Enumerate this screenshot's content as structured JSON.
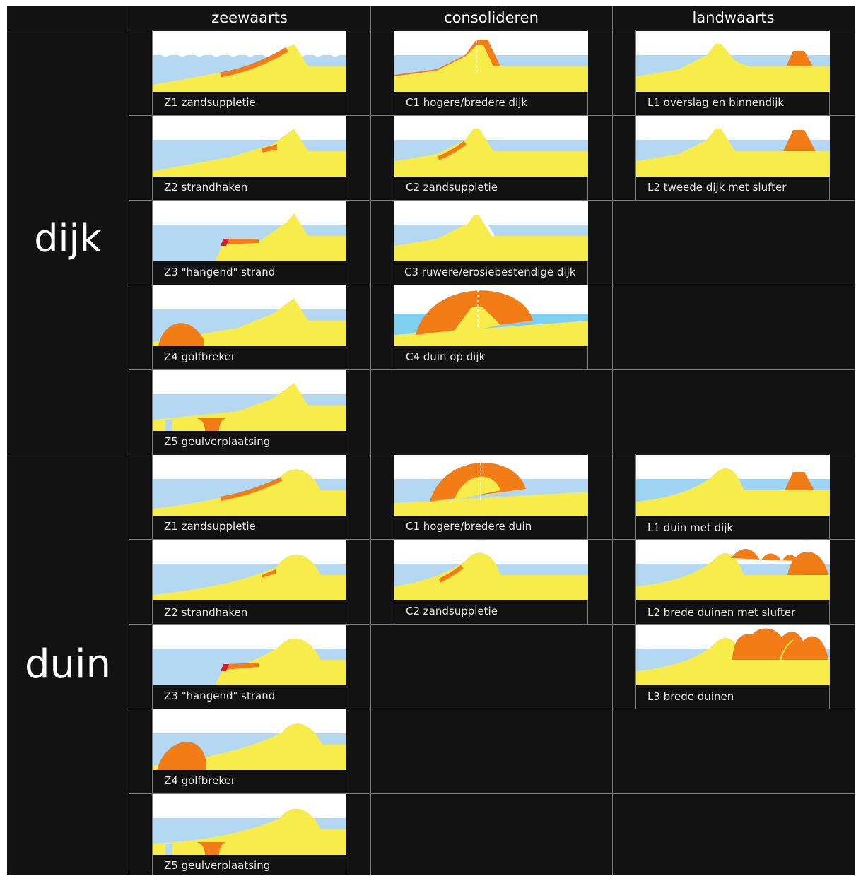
{
  "columns": {
    "zeewaarts": "zeewaarts",
    "consolideren": "consolideren",
    "landwaarts": "landwaarts"
  },
  "groups": {
    "dijk": "dijk",
    "duin": "duin"
  },
  "dijk": {
    "Z1": "Z1 zandsuppletie",
    "Z2": "Z2 strandhaken",
    "Z3": "Z3 \"hangend\" strand",
    "Z4": "Z4 golfbreker",
    "Z5": "Z5 geulverplaatsing",
    "C1": "C1 hogere/bredere dijk",
    "C2": "C2 zandsuppletie",
    "C3": "C3 ruwere/erosiebestendige dijk",
    "C4": "C4 duin op dijk",
    "L1": "L1 overslag en binnendijk",
    "L2": "L2 tweede dijk met slufter"
  },
  "duin": {
    "Z1": "Z1 zandsuppletie",
    "Z2": "Z2 strandhaken",
    "Z3": "Z3 \"hangend\" strand",
    "Z4": "Z4 golfbreker",
    "Z5": "Z5 geulverplaatsing",
    "C1": "C1 hogere/bredere duin",
    "C2": "C2 zandsuppletie",
    "L1": "L1 duin met dijk",
    "L2": "L2 brede duinen met slufter",
    "L3": "L3 brede duinen"
  },
  "colors": {
    "background": "#121212",
    "sand": "#f7ec4a",
    "water": "#b4d7f2",
    "intervention": "#f27d16",
    "hard": "#d21e2a",
    "grid": "#7a7a7a"
  }
}
